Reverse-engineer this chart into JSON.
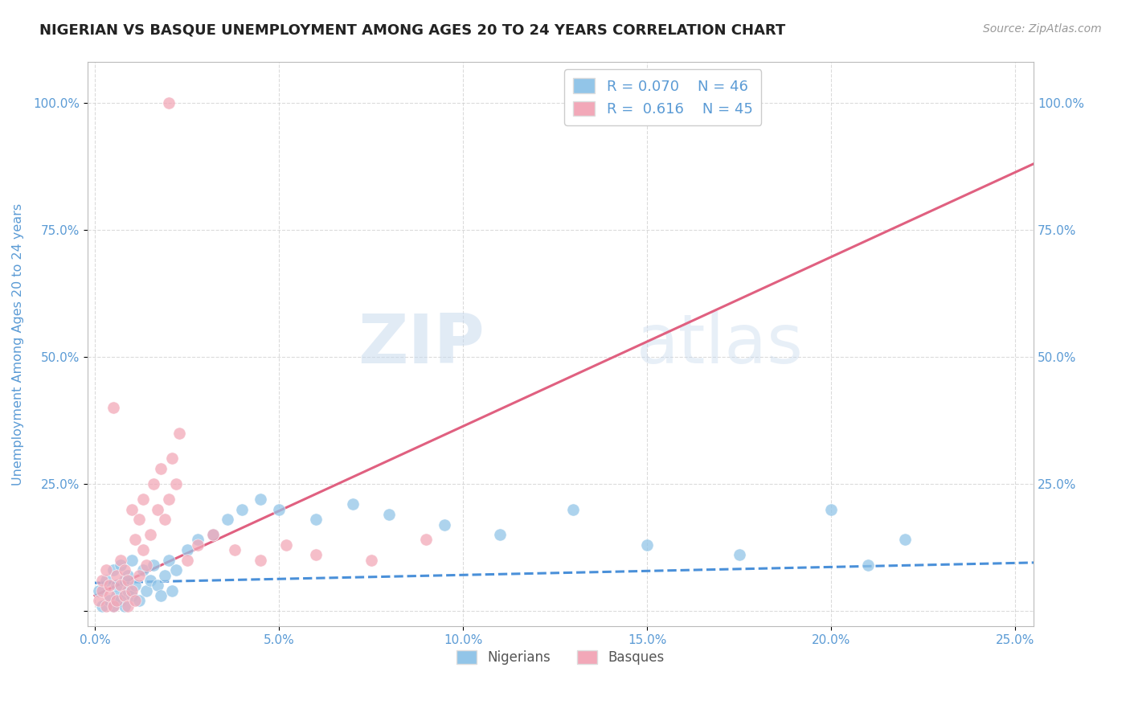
{
  "title": "NIGERIAN VS BASQUE UNEMPLOYMENT AMONG AGES 20 TO 24 YEARS CORRELATION CHART",
  "source_text": "Source: ZipAtlas.com",
  "ylabel": "Unemployment Among Ages 20 to 24 years",
  "xlim": [
    -0.002,
    0.255
  ],
  "ylim": [
    -0.03,
    1.08
  ],
  "xticks": [
    0.0,
    0.05,
    0.1,
    0.15,
    0.2,
    0.25
  ],
  "xticklabels": [
    "0.0%",
    "5.0%",
    "10.0%",
    "15.0%",
    "20.0%",
    "25.0%"
  ],
  "yticks": [
    0.0,
    0.25,
    0.5,
    0.75,
    1.0
  ],
  "yticklabels": [
    "",
    "25.0%",
    "50.0%",
    "75.0%",
    "100.0%"
  ],
  "blue_color": "#92C5E8",
  "pink_color": "#F2A8B8",
  "blue_line_color": "#4A90D9",
  "pink_line_color": "#E06080",
  "legend_blue_text": "R = 0.070    N = 46",
  "legend_pink_text": "R =  0.616    N = 45",
  "watermark_part1": "ZIP",
  "watermark_part2": "atlas",
  "nigerians_label": "Nigerians",
  "basques_label": "Basques",
  "tick_color": "#5B9BD5",
  "grid_color": "#CCCCCC",
  "blue_scatter_x": [
    0.001,
    0.002,
    0.003,
    0.004,
    0.005,
    0.005,
    0.006,
    0.006,
    0.007,
    0.007,
    0.008,
    0.008,
    0.009,
    0.009,
    0.01,
    0.01,
    0.011,
    0.012,
    0.013,
    0.014,
    0.015,
    0.016,
    0.017,
    0.018,
    0.019,
    0.02,
    0.021,
    0.022,
    0.025,
    0.028,
    0.032,
    0.036,
    0.04,
    0.045,
    0.05,
    0.06,
    0.07,
    0.08,
    0.095,
    0.11,
    0.13,
    0.15,
    0.175,
    0.2,
    0.21,
    0.22
  ],
  "blue_scatter_y": [
    0.04,
    0.01,
    0.06,
    0.02,
    0.08,
    0.01,
    0.05,
    0.03,
    0.09,
    0.02,
    0.06,
    0.01,
    0.04,
    0.07,
    0.03,
    0.1,
    0.05,
    0.02,
    0.08,
    0.04,
    0.06,
    0.09,
    0.05,
    0.03,
    0.07,
    0.1,
    0.04,
    0.08,
    0.12,
    0.14,
    0.15,
    0.18,
    0.2,
    0.22,
    0.2,
    0.18,
    0.21,
    0.19,
    0.17,
    0.15,
    0.2,
    0.13,
    0.11,
    0.2,
    0.09,
    0.14
  ],
  "pink_scatter_x": [
    0.001,
    0.002,
    0.002,
    0.003,
    0.003,
    0.004,
    0.004,
    0.005,
    0.005,
    0.006,
    0.006,
    0.007,
    0.007,
    0.008,
    0.008,
    0.009,
    0.009,
    0.01,
    0.01,
    0.011,
    0.011,
    0.012,
    0.012,
    0.013,
    0.013,
    0.014,
    0.015,
    0.016,
    0.017,
    0.018,
    0.019,
    0.02,
    0.021,
    0.022,
    0.023,
    0.025,
    0.028,
    0.032,
    0.038,
    0.045,
    0.052,
    0.06,
    0.075,
    0.09,
    0.02
  ],
  "pink_scatter_y": [
    0.02,
    0.04,
    0.06,
    0.01,
    0.08,
    0.03,
    0.05,
    0.01,
    0.4,
    0.07,
    0.02,
    0.05,
    0.1,
    0.03,
    0.08,
    0.01,
    0.06,
    0.04,
    0.2,
    0.02,
    0.14,
    0.07,
    0.18,
    0.12,
    0.22,
    0.09,
    0.15,
    0.25,
    0.2,
    0.28,
    0.18,
    0.22,
    0.3,
    0.25,
    0.35,
    0.1,
    0.13,
    0.15,
    0.12,
    0.1,
    0.13,
    0.11,
    0.1,
    0.14,
    1.0
  ],
  "blue_trend_x": [
    0.0,
    0.255
  ],
  "blue_trend_y": [
    0.055,
    0.095
  ],
  "pink_trend_x": [
    0.0,
    0.255
  ],
  "pink_trend_y": [
    0.03,
    0.88
  ]
}
